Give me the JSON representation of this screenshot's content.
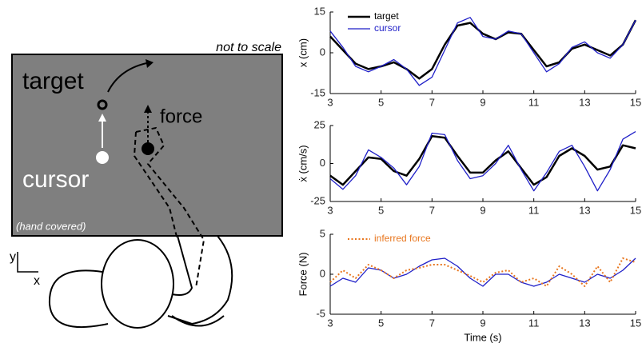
{
  "diagram": {
    "note": "not to scale",
    "target": "target",
    "force": "force",
    "cursor": "cursor",
    "hand": "(hand covered)",
    "axis_y": "y",
    "axis_x": "x"
  },
  "chart_data": [
    {
      "type": "line",
      "ylabel": "x (cm)",
      "xlim": [
        3,
        15
      ],
      "xticks": [
        3,
        5,
        7,
        9,
        11,
        13,
        15
      ],
      "ylim": [
        -15,
        15
      ],
      "yticks": [
        -15,
        0,
        15
      ],
      "x": [
        3,
        3.5,
        4,
        4.5,
        5,
        5.5,
        6,
        6.5,
        7,
        7.5,
        8,
        8.5,
        9,
        9.5,
        10,
        10.5,
        11,
        11.5,
        12,
        12.5,
        13,
        13.5,
        14,
        14.5,
        15
      ],
      "series": [
        {
          "name": "target",
          "color": "#000000",
          "linewidth": 2.5,
          "values": [
            6,
            1,
            -4,
            -6,
            -5,
            -3.5,
            -6,
            -9.5,
            -6,
            3,
            10,
            11,
            7,
            5,
            7.5,
            7,
            1,
            -5,
            -3.5,
            1.5,
            3,
            1,
            -1,
            3,
            12
          ]
        },
        {
          "name": "cursor",
          "color": "#1f1fc8",
          "linewidth": 1.3,
          "values": [
            8,
            2,
            -5,
            -7,
            -5,
            -2.5,
            -6,
            -12,
            -9,
            1,
            11,
            13,
            6,
            5,
            8,
            7,
            0,
            -7,
            -4,
            2,
            4,
            0,
            -2,
            3,
            12
          ]
        }
      ]
    },
    {
      "type": "line",
      "ylabel": "ẋ (cm/s)",
      "xlim": [
        3,
        15
      ],
      "xticks": [
        3,
        5,
        7,
        9,
        11,
        13,
        15
      ],
      "ylim": [
        -25,
        25
      ],
      "yticks": [
        -25,
        0,
        25
      ],
      "x": [
        3,
        3.5,
        4,
        4.5,
        5,
        5.5,
        6,
        6.5,
        7,
        7.5,
        8,
        8.5,
        9,
        9.5,
        10,
        10.5,
        11,
        11.5,
        12,
        12.5,
        13,
        13.5,
        14,
        14.5,
        15
      ],
      "series": [
        {
          "color": "#000000",
          "linewidth": 2.5,
          "values": [
            -8,
            -14,
            -5,
            4,
            3,
            -5,
            -8,
            3,
            18,
            17,
            5,
            -6,
            -6,
            2,
            8,
            -3,
            -14,
            -9,
            5,
            10,
            5,
            -4,
            -2,
            12,
            10
          ]
        },
        {
          "color": "#1f1fc8",
          "linewidth": 1.3,
          "values": [
            -10,
            -17,
            -8,
            9,
            4,
            -3,
            -14,
            -2,
            20,
            19,
            2,
            -10,
            -8,
            0,
            12,
            -4,
            -18,
            -6,
            8,
            12,
            -2,
            -18,
            -4,
            16,
            21
          ]
        }
      ]
    },
    {
      "type": "line",
      "ylabel": "Force (N)",
      "xlabel": "Time (s)",
      "xlim": [
        3,
        15
      ],
      "xticks": [
        3,
        5,
        7,
        9,
        11,
        13,
        15
      ],
      "ylim": [
        -5,
        5
      ],
      "yticks": [
        -5,
        0,
        5
      ],
      "x": [
        3,
        3.5,
        4,
        4.5,
        5,
        5.5,
        6,
        6.5,
        7,
        7.5,
        8,
        8.5,
        9,
        9.5,
        10,
        10.5,
        11,
        11.5,
        12,
        12.5,
        13,
        13.5,
        14,
        14.5,
        15
      ],
      "series": [
        {
          "color": "#1f1fc8",
          "linewidth": 1.3,
          "values": [
            -1.5,
            -0.5,
            -1,
            0.8,
            0.5,
            -0.5,
            0,
            1,
            1.8,
            2,
            1,
            -0.5,
            -1.5,
            0,
            0,
            -1,
            -1.5,
            -1,
            0,
            -0.5,
            -1,
            0,
            -0.5,
            0.5,
            2
          ]
        },
        {
          "name": "inferred force",
          "color": "#e8761e",
          "linewidth": 2,
          "linestyle": "dotted",
          "values": [
            -1,
            0.5,
            -0.5,
            1.2,
            0.5,
            -0.5,
            0.5,
            0.8,
            1.2,
            1.2,
            0.5,
            -0.2,
            -1,
            0.2,
            0.5,
            -1,
            -0.5,
            -1.5,
            1,
            0,
            -1.5,
            1,
            -1,
            2,
            1.5
          ]
        }
      ]
    }
  ]
}
